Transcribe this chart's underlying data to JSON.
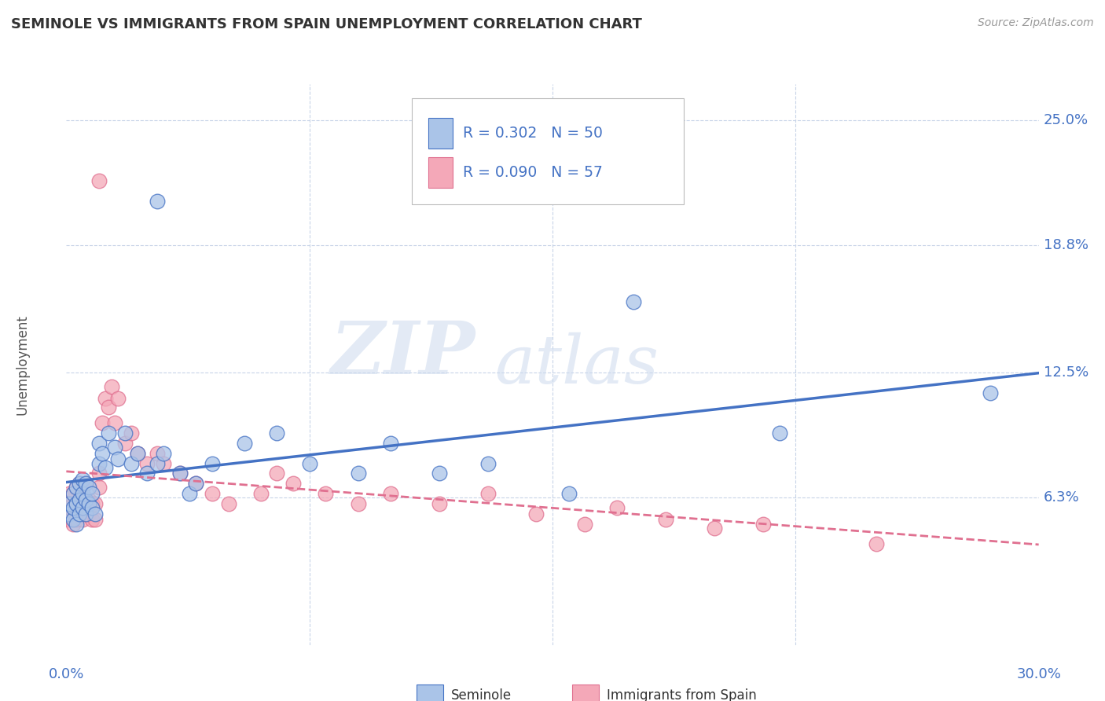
{
  "title": "SEMINOLE VS IMMIGRANTS FROM SPAIN UNEMPLOYMENT CORRELATION CHART",
  "source": "Source: ZipAtlas.com",
  "ylabel": "Unemployment",
  "y_ticks": [
    0.063,
    0.125,
    0.188,
    0.25
  ],
  "y_tick_labels": [
    "6.3%",
    "12.5%",
    "18.8%",
    "25.0%"
  ],
  "xlim": [
    0.0,
    0.3
  ],
  "ylim": [
    -0.01,
    0.268
  ],
  "seminole_R": "0.302",
  "seminole_N": "50",
  "spain_R": "0.090",
  "spain_N": "57",
  "seminole_color": "#aac4e8",
  "spain_color": "#f4a8b8",
  "seminole_line_color": "#4472c4",
  "spain_line_color": "#e07090",
  "watermark_zip": "ZIP",
  "watermark_atlas": "atlas",
  "background_color": "#ffffff",
  "grid_color": "#c8d4e8",
  "legend_text_color": "#4472c4",
  "seminole_x": [
    0.001,
    0.001,
    0.002,
    0.002,
    0.002,
    0.003,
    0.003,
    0.003,
    0.004,
    0.004,
    0.004,
    0.005,
    0.005,
    0.005,
    0.006,
    0.006,
    0.006,
    0.007,
    0.007,
    0.008,
    0.008,
    0.009,
    0.01,
    0.01,
    0.011,
    0.012,
    0.013,
    0.015,
    0.016,
    0.018,
    0.02,
    0.022,
    0.025,
    0.028,
    0.03,
    0.035,
    0.038,
    0.04,
    0.045,
    0.055,
    0.065,
    0.075,
    0.09,
    0.1,
    0.115,
    0.13,
    0.155,
    0.175,
    0.22,
    0.285
  ],
  "seminole_y": [
    0.055,
    0.06,
    0.052,
    0.058,
    0.065,
    0.05,
    0.06,
    0.068,
    0.055,
    0.062,
    0.07,
    0.058,
    0.065,
    0.072,
    0.055,
    0.062,
    0.07,
    0.06,
    0.068,
    0.058,
    0.065,
    0.055,
    0.08,
    0.09,
    0.085,
    0.078,
    0.095,
    0.088,
    0.082,
    0.095,
    0.08,
    0.085,
    0.075,
    0.08,
    0.085,
    0.075,
    0.065,
    0.07,
    0.08,
    0.09,
    0.095,
    0.08,
    0.075,
    0.09,
    0.075,
    0.08,
    0.065,
    0.16,
    0.095,
    0.115
  ],
  "spain_x": [
    0.001,
    0.001,
    0.001,
    0.002,
    0.002,
    0.002,
    0.003,
    0.003,
    0.003,
    0.004,
    0.004,
    0.004,
    0.005,
    0.005,
    0.005,
    0.006,
    0.006,
    0.006,
    0.007,
    0.007,
    0.008,
    0.008,
    0.009,
    0.009,
    0.01,
    0.01,
    0.011,
    0.012,
    0.013,
    0.014,
    0.015,
    0.016,
    0.018,
    0.02,
    0.022,
    0.025,
    0.028,
    0.03,
    0.035,
    0.04,
    0.045,
    0.05,
    0.06,
    0.065,
    0.07,
    0.08,
    0.09,
    0.1,
    0.115,
    0.13,
    0.145,
    0.16,
    0.17,
    0.185,
    0.2,
    0.215,
    0.25
  ],
  "spain_y": [
    0.052,
    0.058,
    0.065,
    0.05,
    0.058,
    0.065,
    0.052,
    0.06,
    0.068,
    0.055,
    0.062,
    0.07,
    0.052,
    0.06,
    0.068,
    0.055,
    0.062,
    0.07,
    0.055,
    0.062,
    0.052,
    0.06,
    0.052,
    0.06,
    0.068,
    0.075,
    0.1,
    0.112,
    0.108,
    0.118,
    0.1,
    0.112,
    0.09,
    0.095,
    0.085,
    0.08,
    0.085,
    0.08,
    0.075,
    0.07,
    0.065,
    0.06,
    0.065,
    0.075,
    0.07,
    0.065,
    0.06,
    0.065,
    0.06,
    0.065,
    0.055,
    0.05,
    0.058,
    0.052,
    0.048,
    0.05,
    0.04
  ],
  "spain_outlier_x": [
    0.01
  ],
  "spain_outlier_y": [
    0.22
  ],
  "blue_outlier_x": [
    0.028
  ],
  "blue_outlier_y": [
    0.21
  ]
}
